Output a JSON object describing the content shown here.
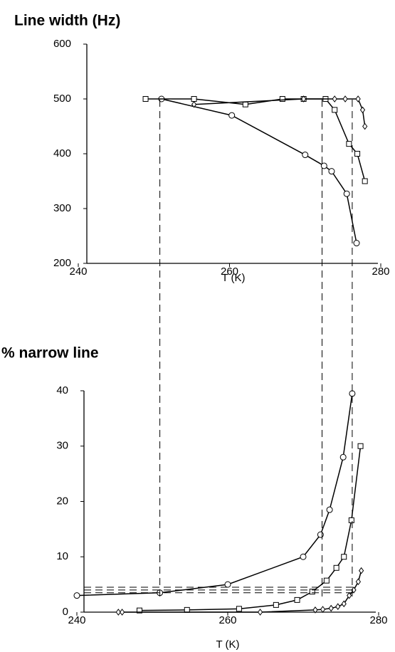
{
  "chart_data": [
    {
      "type": "line",
      "title": "Line width (Hz)",
      "x_label": "T (K)",
      "xlim": [
        240,
        280
      ],
      "xticks": [
        240,
        260,
        280
      ],
      "ylim": [
        200,
        600
      ],
      "yticks": [
        200,
        300,
        400,
        500,
        600
      ],
      "series": [
        {
          "marker": "circle",
          "color": "#000000",
          "x": [
            251,
            260.3,
            270,
            272.5,
            273.5,
            275.5,
            276.8
          ],
          "values": [
            500,
            470,
            398,
            378,
            368,
            327,
            237
          ]
        },
        {
          "marker": "square",
          "color": "#000000",
          "x": [
            248.9,
            255.3,
            262.1,
            267,
            269.8,
            272.7,
            273.9,
            275.8,
            276.9,
            277.9
          ],
          "values": [
            500,
            500,
            490,
            500,
            500,
            500,
            480,
            418,
            400,
            350
          ]
        },
        {
          "marker": "diamond",
          "color": "#000000",
          "x": [
            255.3,
            269.8,
            273.9,
            275.3,
            277,
            277.6,
            277.9
          ],
          "values": [
            490,
            500,
            500,
            500,
            500,
            480,
            450
          ]
        }
      ]
    },
    {
      "type": "line",
      "title": "% narrow line",
      "x_label": "T (K)",
      "xlim": [
        240,
        280
      ],
      "xticks": [
        240,
        260,
        280
      ],
      "ylim": [
        0,
        40
      ],
      "yticks": [
        0,
        10,
        20,
        30,
        40
      ],
      "vlines": [
        251,
        272.5,
        276.5
      ],
      "hlines": [
        3.5,
        4,
        4.5
      ],
      "series": [
        {
          "marker": "circle",
          "color": "#000000",
          "x": [
            240,
            251,
            260,
            270,
            272.3,
            273.5,
            275.3,
            276.5
          ],
          "values": [
            3,
            3.5,
            5,
            10,
            14,
            18.5,
            28,
            39.5
          ]
        },
        {
          "marker": "square",
          "color": "#000000",
          "x": [
            248.3,
            254.6,
            261.5,
            266.4,
            269.2,
            271.2,
            273.1,
            274.4,
            275.4,
            276.4,
            277.6
          ],
          "values": [
            0.3,
            0.4,
            0.6,
            1.3,
            2.2,
            3.7,
            5.7,
            8,
            10,
            16.6,
            30
          ]
        },
        {
          "marker": "diamond",
          "color": "#000000",
          "x": [
            245.5,
            246,
            264.3,
            271.6,
            272.6,
            273.7,
            274.6,
            275.4,
            276.1,
            276.7,
            277.3,
            277.7
          ],
          "values": [
            0,
            0,
            0,
            0.4,
            0.5,
            0.7,
            1,
            1.5,
            3,
            4,
            5.5,
            7.5
          ]
        }
      ]
    }
  ]
}
